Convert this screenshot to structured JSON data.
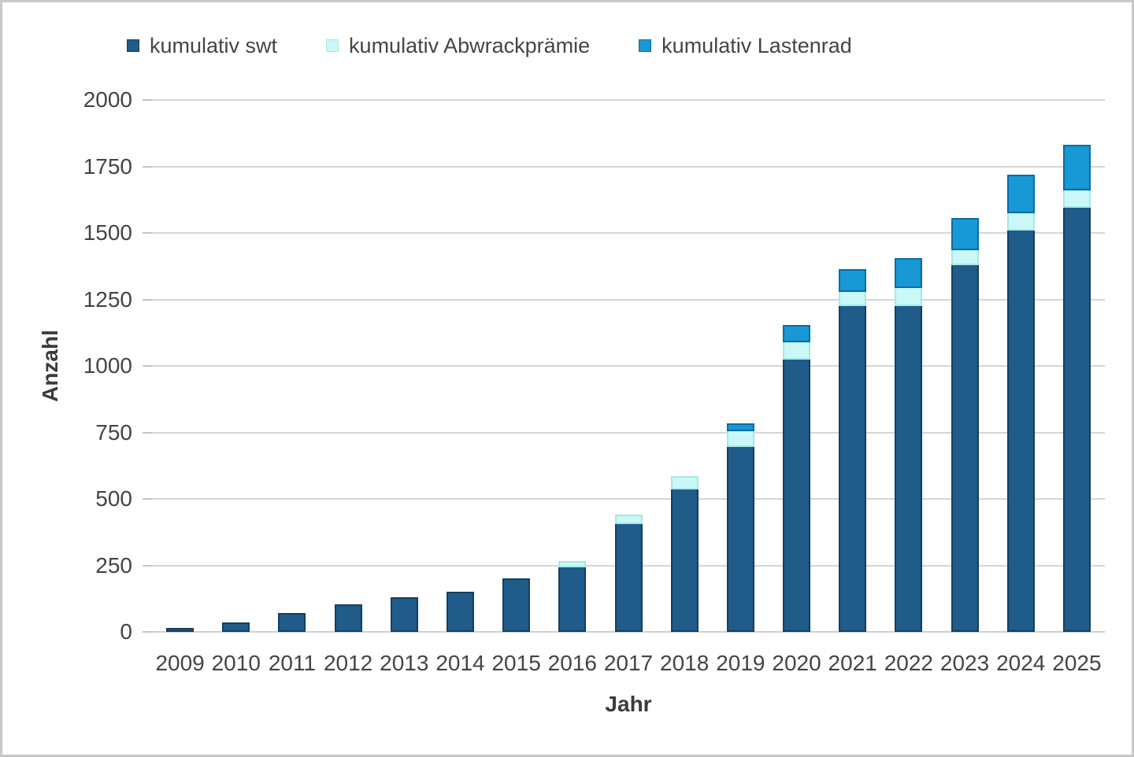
{
  "chart_data": {
    "type": "bar",
    "stacked": true,
    "title": "",
    "xlabel": "Jahr",
    "ylabel": "Anzahl",
    "ylim": [
      0,
      2000
    ],
    "yticks": [
      0,
      250,
      500,
      750,
      1000,
      1250,
      1500,
      1750,
      2000
    ],
    "grid": true,
    "legend_position": "top",
    "categories": [
      "2009",
      "2010",
      "2011",
      "2012",
      "2013",
      "2014",
      "2015",
      "2016",
      "2017",
      "2018",
      "2019",
      "2020",
      "2021",
      "2022",
      "2023",
      "2024",
      "2025"
    ],
    "series": [
      {
        "name": "kumulativ swt",
        "color": "#1f5c8a",
        "border_color": "#153f5e",
        "values": [
          15,
          35,
          70,
          105,
          130,
          150,
          200,
          250,
          410,
          540,
          700,
          1030,
          1230,
          1230,
          1385,
          1515,
          1600
        ]
      },
      {
        "name": "kumulativ Abwrackprämie",
        "color": "#c9f8f6",
        "border_color": "#a5e9e6",
        "values": [
          0,
          0,
          0,
          0,
          0,
          0,
          0,
          15,
          30,
          45,
          60,
          65,
          55,
          70,
          55,
          65,
          65
        ]
      },
      {
        "name": "kumulativ Lastenrad",
        "color": "#1898d5",
        "border_color": "#0b6ca4",
        "values": [
          0,
          0,
          0,
          0,
          0,
          0,
          0,
          0,
          0,
          0,
          25,
          60,
          80,
          105,
          115,
          140,
          165
        ]
      }
    ]
  }
}
